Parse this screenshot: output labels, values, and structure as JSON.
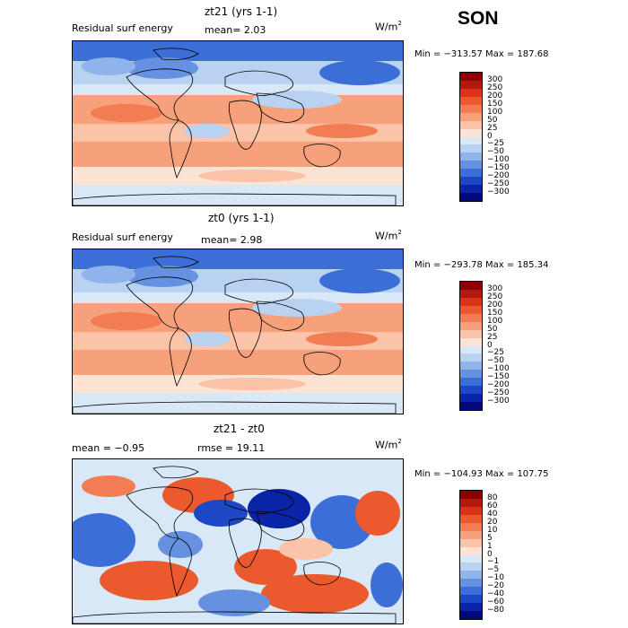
{
  "season": "SON",
  "panels": [
    {
      "title": "zt21 (yrs 1-1)",
      "label_left": "Residual surf energy",
      "label_mid": "mean=    2.03",
      "units": "W/m",
      "units_sup": "2",
      "minmax": "Min = −313.57  Max = 187.68",
      "colorbar": {
        "labels": [
          "300",
          "250",
          "200",
          "150",
          "100",
          "50",
          "25",
          "0",
          "−25",
          "−50",
          "−100",
          "−150",
          "−200",
          "−250",
          "−300"
        ],
        "colors": [
          "#8b0000",
          "#b21a0e",
          "#d93418",
          "#ea5a2e",
          "#f27d52",
          "#f7a07c",
          "#fbc3a7",
          "#fde3d3",
          "#d8e8f7",
          "#b9d2f2",
          "#8fb3ea",
          "#6591e0",
          "#3c6ed8",
          "#1d47c4",
          "#0a24a6",
          "#000a7a"
        ]
      },
      "variant": "mean"
    },
    {
      "title": "zt0 (yrs 1-1)",
      "label_left": "Residual surf energy",
      "label_mid": "mean=    2.98",
      "units": "W/m",
      "units_sup": "2",
      "minmax": "Min = −293.78  Max = 185.34",
      "colorbar": {
        "labels": [
          "300",
          "250",
          "200",
          "150",
          "100",
          "50",
          "25",
          "0",
          "−25",
          "−50",
          "−100",
          "−150",
          "−200",
          "−250",
          "−300"
        ],
        "colors": [
          "#8b0000",
          "#b21a0e",
          "#d93418",
          "#ea5a2e",
          "#f27d52",
          "#f7a07c",
          "#fbc3a7",
          "#fde3d3",
          "#d8e8f7",
          "#b9d2f2",
          "#8fb3ea",
          "#6591e0",
          "#3c6ed8",
          "#1d47c4",
          "#0a24a6",
          "#000a7a"
        ]
      },
      "variant": "mean"
    },
    {
      "title": "zt21 - zt0",
      "label_left": "mean =  −0.95",
      "label_mid": "rmse =  19.11",
      "units": "W/m",
      "units_sup": "2",
      "minmax": "Min = −104.93  Max = 107.75",
      "colorbar": {
        "labels": [
          "80",
          "60",
          "40",
          "20",
          "10",
          "5",
          "1",
          "0",
          "−1",
          "−5",
          "−10",
          "−20",
          "−40",
          "−60",
          "−80"
        ],
        "colors": [
          "#8b0000",
          "#b21a0e",
          "#d93418",
          "#ea5a2e",
          "#f27d52",
          "#f7a07c",
          "#fbc3a7",
          "#fde3d3",
          "#d8e8f7",
          "#b9d2f2",
          "#8fb3ea",
          "#6591e0",
          "#3c6ed8",
          "#1d47c4",
          "#0a24a6",
          "#000a7a"
        ]
      },
      "variant": "diff"
    }
  ]
}
